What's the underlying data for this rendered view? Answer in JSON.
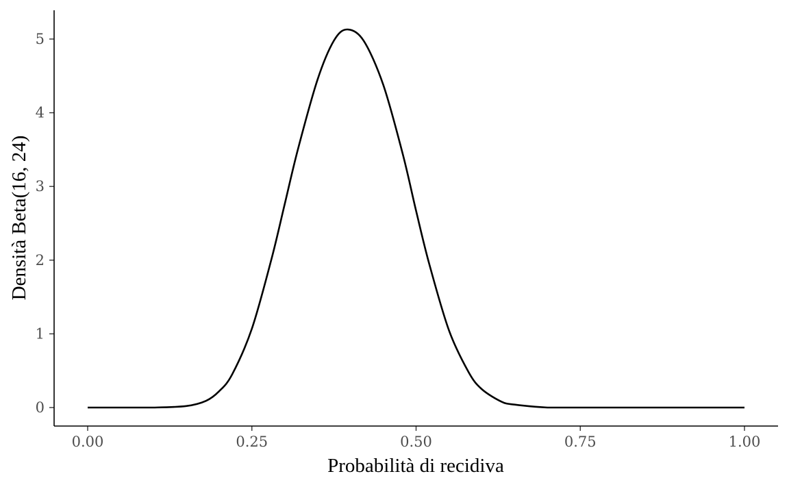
{
  "chart_data": {
    "type": "line",
    "xlabel": "Probabilità di recidiva",
    "ylabel": "Densità Beta(16, 24)",
    "xlim": [
      0,
      1
    ],
    "ylim": [
      0,
      5.13
    ],
    "x_ticks": [
      0,
      0.25,
      0.5,
      0.75,
      1
    ],
    "x_tick_labels": [
      "0.00",
      "0.25",
      "0.50",
      "0.75",
      "1.00"
    ],
    "y_ticks": [
      0,
      1,
      2,
      3,
      4,
      5
    ],
    "y_tick_labels": [
      "0",
      "1",
      "2",
      "3",
      "4",
      "5"
    ],
    "grid": false,
    "series": [
      {
        "x": [
          0.0,
          0.05,
          0.1,
          0.15,
          0.18,
          0.2,
          0.22,
          0.25,
          0.28,
          0.3,
          0.32,
          0.35,
          0.375,
          0.395,
          0.42,
          0.45,
          0.48,
          0.5,
          0.52,
          0.55,
          0.58,
          0.6,
          0.63,
          0.65,
          0.7,
          0.75,
          0.8,
          0.9,
          1.0
        ],
        "y": [
          0.0,
          0.0,
          0.0,
          0.02,
          0.09,
          0.22,
          0.45,
          1.07,
          2.02,
          2.76,
          3.5,
          4.45,
          4.98,
          5.13,
          4.98,
          4.38,
          3.43,
          2.67,
          1.95,
          1.05,
          0.48,
          0.25,
          0.08,
          0.04,
          0.0,
          0.0,
          0.0,
          0.0,
          0.0
        ]
      }
    ]
  }
}
